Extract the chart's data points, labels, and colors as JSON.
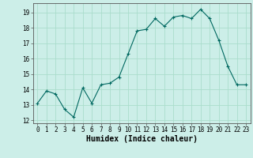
{
  "x": [
    0,
    1,
    2,
    3,
    4,
    5,
    6,
    7,
    8,
    9,
    10,
    11,
    12,
    13,
    14,
    15,
    16,
    17,
    18,
    19,
    20,
    21,
    22,
    23
  ],
  "y": [
    13.1,
    13.9,
    13.7,
    12.7,
    12.2,
    14.1,
    13.1,
    14.3,
    14.4,
    14.8,
    16.3,
    17.8,
    17.9,
    18.6,
    18.1,
    18.7,
    18.8,
    18.6,
    19.2,
    18.6,
    17.2,
    15.5,
    14.3,
    14.3
  ],
  "line_color": "#006860",
  "marker": "+",
  "marker_size": 3,
  "bg_color": "#cceee8",
  "grid_color": "#aaddcc",
  "xlabel": "Humidex (Indice chaleur)",
  "ylim": [
    11.8,
    19.6
  ],
  "xlim": [
    -0.5,
    23.5
  ],
  "yticks": [
    12,
    13,
    14,
    15,
    16,
    17,
    18,
    19
  ],
  "xticks": [
    0,
    1,
    2,
    3,
    4,
    5,
    6,
    7,
    8,
    9,
    10,
    11,
    12,
    13,
    14,
    15,
    16,
    17,
    18,
    19,
    20,
    21,
    22,
    23
  ],
  "tick_label_fontsize": 5.5,
  "xlabel_fontsize": 7,
  "spine_color": "#555555"
}
